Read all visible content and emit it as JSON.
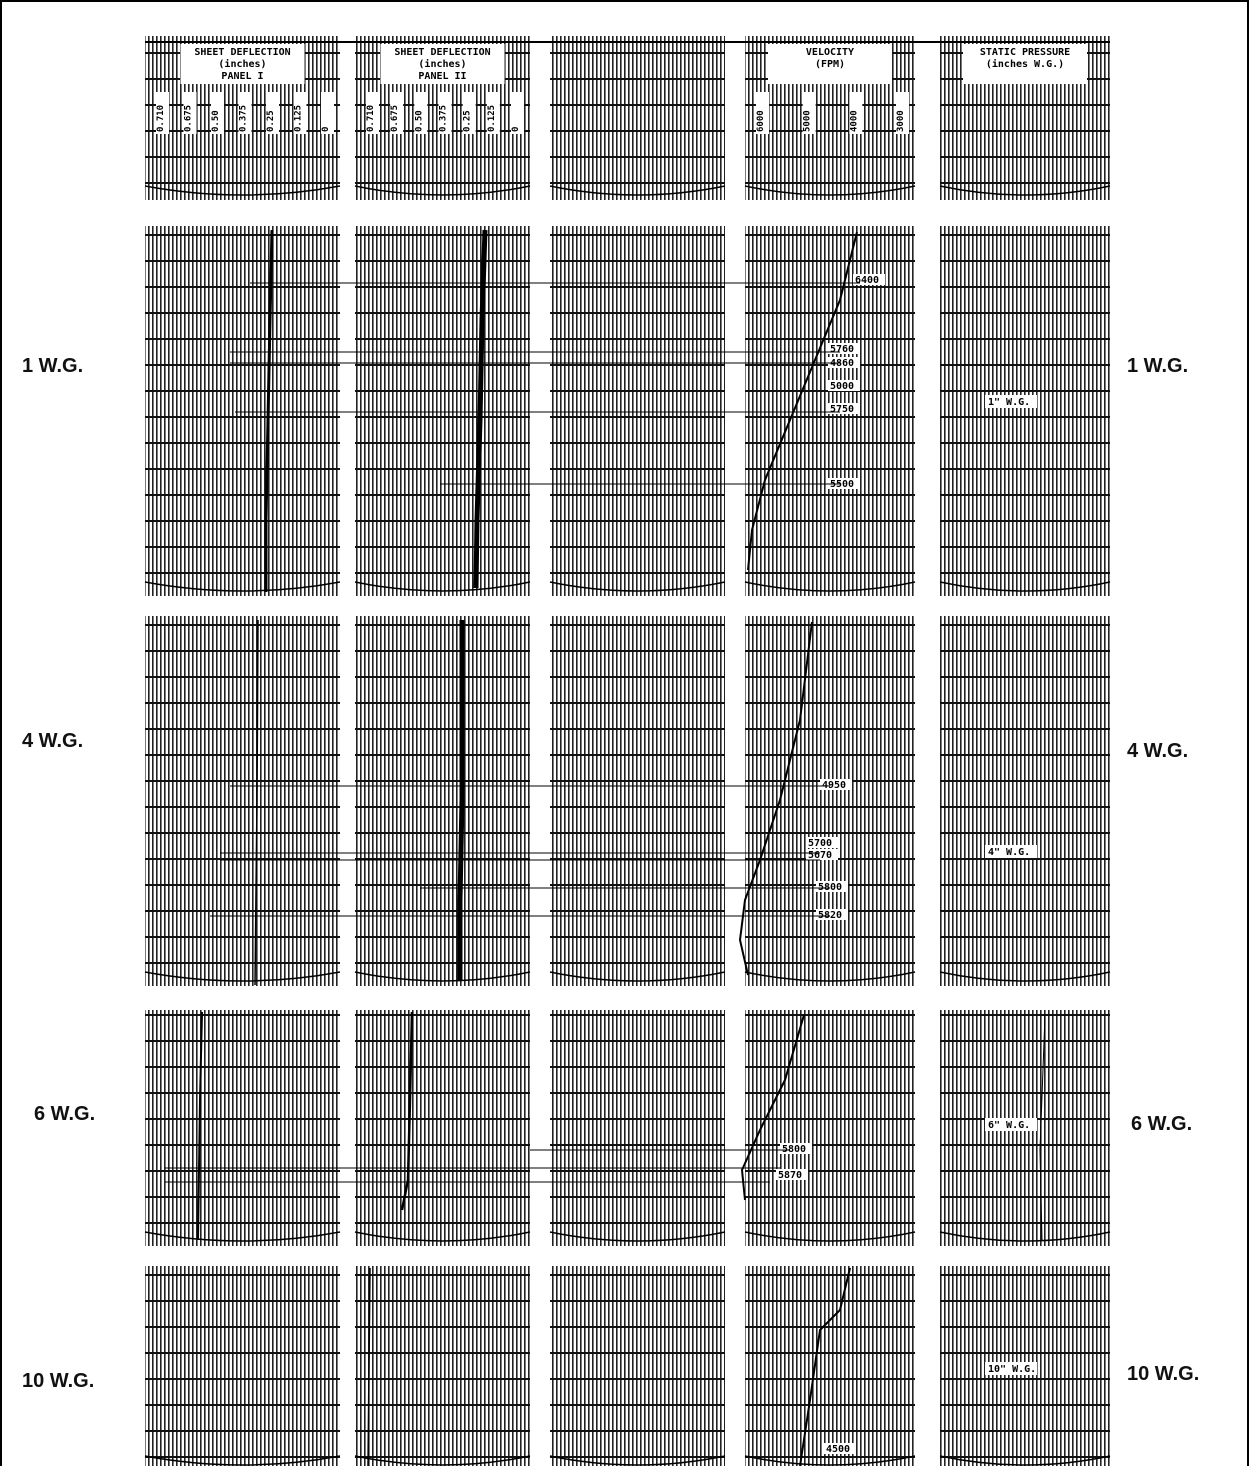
{
  "columns": [
    {
      "title": "SHEET DEFLECTION",
      "unit": "(inches)",
      "panel": "PANEL I",
      "scale": [
        "0.710",
        "0.675",
        "0.50",
        "0.375",
        "0.25",
        "0.125",
        "0"
      ]
    },
    {
      "title": "SHEET DEFLECTION",
      "unit": "(inches)",
      "panel": "PANEL II",
      "scale": [
        "0.710",
        "0.675",
        "0.50",
        "0.375",
        "0.25",
        "0.125",
        "0"
      ]
    },
    {
      "title": "VELOCITY",
      "unit": "(FPM)",
      "scale": [
        "6000",
        "5000",
        "4000",
        "3000"
      ]
    },
    {
      "title": "STATIC PRESSURE",
      "unit": "(inches W.G.)"
    }
  ],
  "rows": [
    {
      "label": "1 W.G.",
      "velocity_notes": [
        "6400",
        "5760",
        "4860",
        "5000",
        "5750",
        "5500"
      ],
      "pressure_note": "1\" W.G."
    },
    {
      "label": "4 W.G.",
      "velocity_notes": [
        "4950",
        "5700",
        "5670",
        "5800",
        "5820"
      ],
      "pressure_note": "4\" W.G."
    },
    {
      "label": "6 W.G.",
      "velocity_notes": [
        "5800",
        "5870"
      ],
      "pressure_note": "6\" W.G."
    },
    {
      "label": "10 W.G.",
      "velocity_notes": [
        "4500"
      ],
      "pressure_note": "10\" W.G."
    }
  ]
}
